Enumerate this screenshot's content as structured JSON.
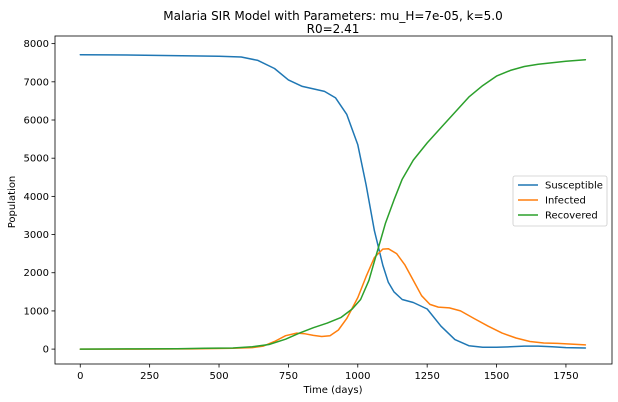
{
  "chart_data": {
    "type": "line",
    "title": "Malaria SIR Model with Parameters: mu_H=7e-05, k=5.0",
    "subtitle": "R0=2.41",
    "xlabel": "Time (days)",
    "ylabel": "Population",
    "xlim": [
      -91,
      1916
    ],
    "ylim": [
      -390,
      8200
    ],
    "xticks": [
      0,
      250,
      500,
      750,
      1000,
      1250,
      1500,
      1750
    ],
    "yticks": [
      0,
      1000,
      2000,
      3000,
      4000,
      5000,
      6000,
      7000,
      8000
    ],
    "grid": false,
    "legend_position": "center-right",
    "series": [
      {
        "name": "Susceptible",
        "color": "#1f77b4",
        "points": [
          [
            0,
            7710
          ],
          [
            100,
            7705
          ],
          [
            200,
            7700
          ],
          [
            300,
            7690
          ],
          [
            400,
            7680
          ],
          [
            500,
            7670
          ],
          [
            580,
            7650
          ],
          [
            640,
            7560
          ],
          [
            700,
            7350
          ],
          [
            750,
            7050
          ],
          [
            800,
            6880
          ],
          [
            850,
            6800
          ],
          [
            880,
            6750
          ],
          [
            920,
            6580
          ],
          [
            960,
            6150
          ],
          [
            1000,
            5350
          ],
          [
            1030,
            4300
          ],
          [
            1060,
            3100
          ],
          [
            1090,
            2200
          ],
          [
            1110,
            1750
          ],
          [
            1130,
            1500
          ],
          [
            1160,
            1300
          ],
          [
            1200,
            1220
          ],
          [
            1250,
            1050
          ],
          [
            1300,
            600
          ],
          [
            1350,
            250
          ],
          [
            1400,
            90
          ],
          [
            1450,
            50
          ],
          [
            1500,
            50
          ],
          [
            1550,
            60
          ],
          [
            1600,
            80
          ],
          [
            1650,
            80
          ],
          [
            1700,
            60
          ],
          [
            1750,
            40
          ],
          [
            1820,
            30
          ]
        ]
      },
      {
        "name": "Infected",
        "color": "#ff7f0e",
        "points": [
          [
            0,
            0
          ],
          [
            200,
            0
          ],
          [
            400,
            5
          ],
          [
            550,
            20
          ],
          [
            620,
            40
          ],
          [
            660,
            80
          ],
          [
            700,
            200
          ],
          [
            740,
            350
          ],
          [
            780,
            420
          ],
          [
            810,
            400
          ],
          [
            840,
            360
          ],
          [
            870,
            330
          ],
          [
            900,
            350
          ],
          [
            930,
            500
          ],
          [
            960,
            800
          ],
          [
            1000,
            1350
          ],
          [
            1030,
            1900
          ],
          [
            1060,
            2400
          ],
          [
            1090,
            2620
          ],
          [
            1110,
            2630
          ],
          [
            1140,
            2500
          ],
          [
            1170,
            2200
          ],
          [
            1200,
            1800
          ],
          [
            1230,
            1400
          ],
          [
            1260,
            1170
          ],
          [
            1290,
            1100
          ],
          [
            1330,
            1080
          ],
          [
            1370,
            1000
          ],
          [
            1420,
            800
          ],
          [
            1470,
            600
          ],
          [
            1520,
            420
          ],
          [
            1570,
            290
          ],
          [
            1620,
            200
          ],
          [
            1670,
            160
          ],
          [
            1720,
            150
          ],
          [
            1770,
            130
          ],
          [
            1820,
            110
          ]
        ]
      },
      {
        "name": "Recovered",
        "color": "#2ca02c",
        "points": [
          [
            0,
            0
          ],
          [
            200,
            5
          ],
          [
            350,
            10
          ],
          [
            450,
            20
          ],
          [
            550,
            30
          ],
          [
            620,
            60
          ],
          [
            680,
            120
          ],
          [
            740,
            260
          ],
          [
            790,
            420
          ],
          [
            840,
            560
          ],
          [
            890,
            680
          ],
          [
            940,
            830
          ],
          [
            980,
            1050
          ],
          [
            1010,
            1300
          ],
          [
            1040,
            1800
          ],
          [
            1060,
            2300
          ],
          [
            1080,
            2800
          ],
          [
            1100,
            3300
          ],
          [
            1130,
            3900
          ],
          [
            1160,
            4450
          ],
          [
            1200,
            4950
          ],
          [
            1250,
            5400
          ],
          [
            1300,
            5800
          ],
          [
            1350,
            6200
          ],
          [
            1400,
            6600
          ],
          [
            1450,
            6900
          ],
          [
            1500,
            7150
          ],
          [
            1550,
            7300
          ],
          [
            1600,
            7400
          ],
          [
            1650,
            7460
          ],
          [
            1700,
            7500
          ],
          [
            1750,
            7540
          ],
          [
            1820,
            7580
          ]
        ]
      }
    ]
  }
}
